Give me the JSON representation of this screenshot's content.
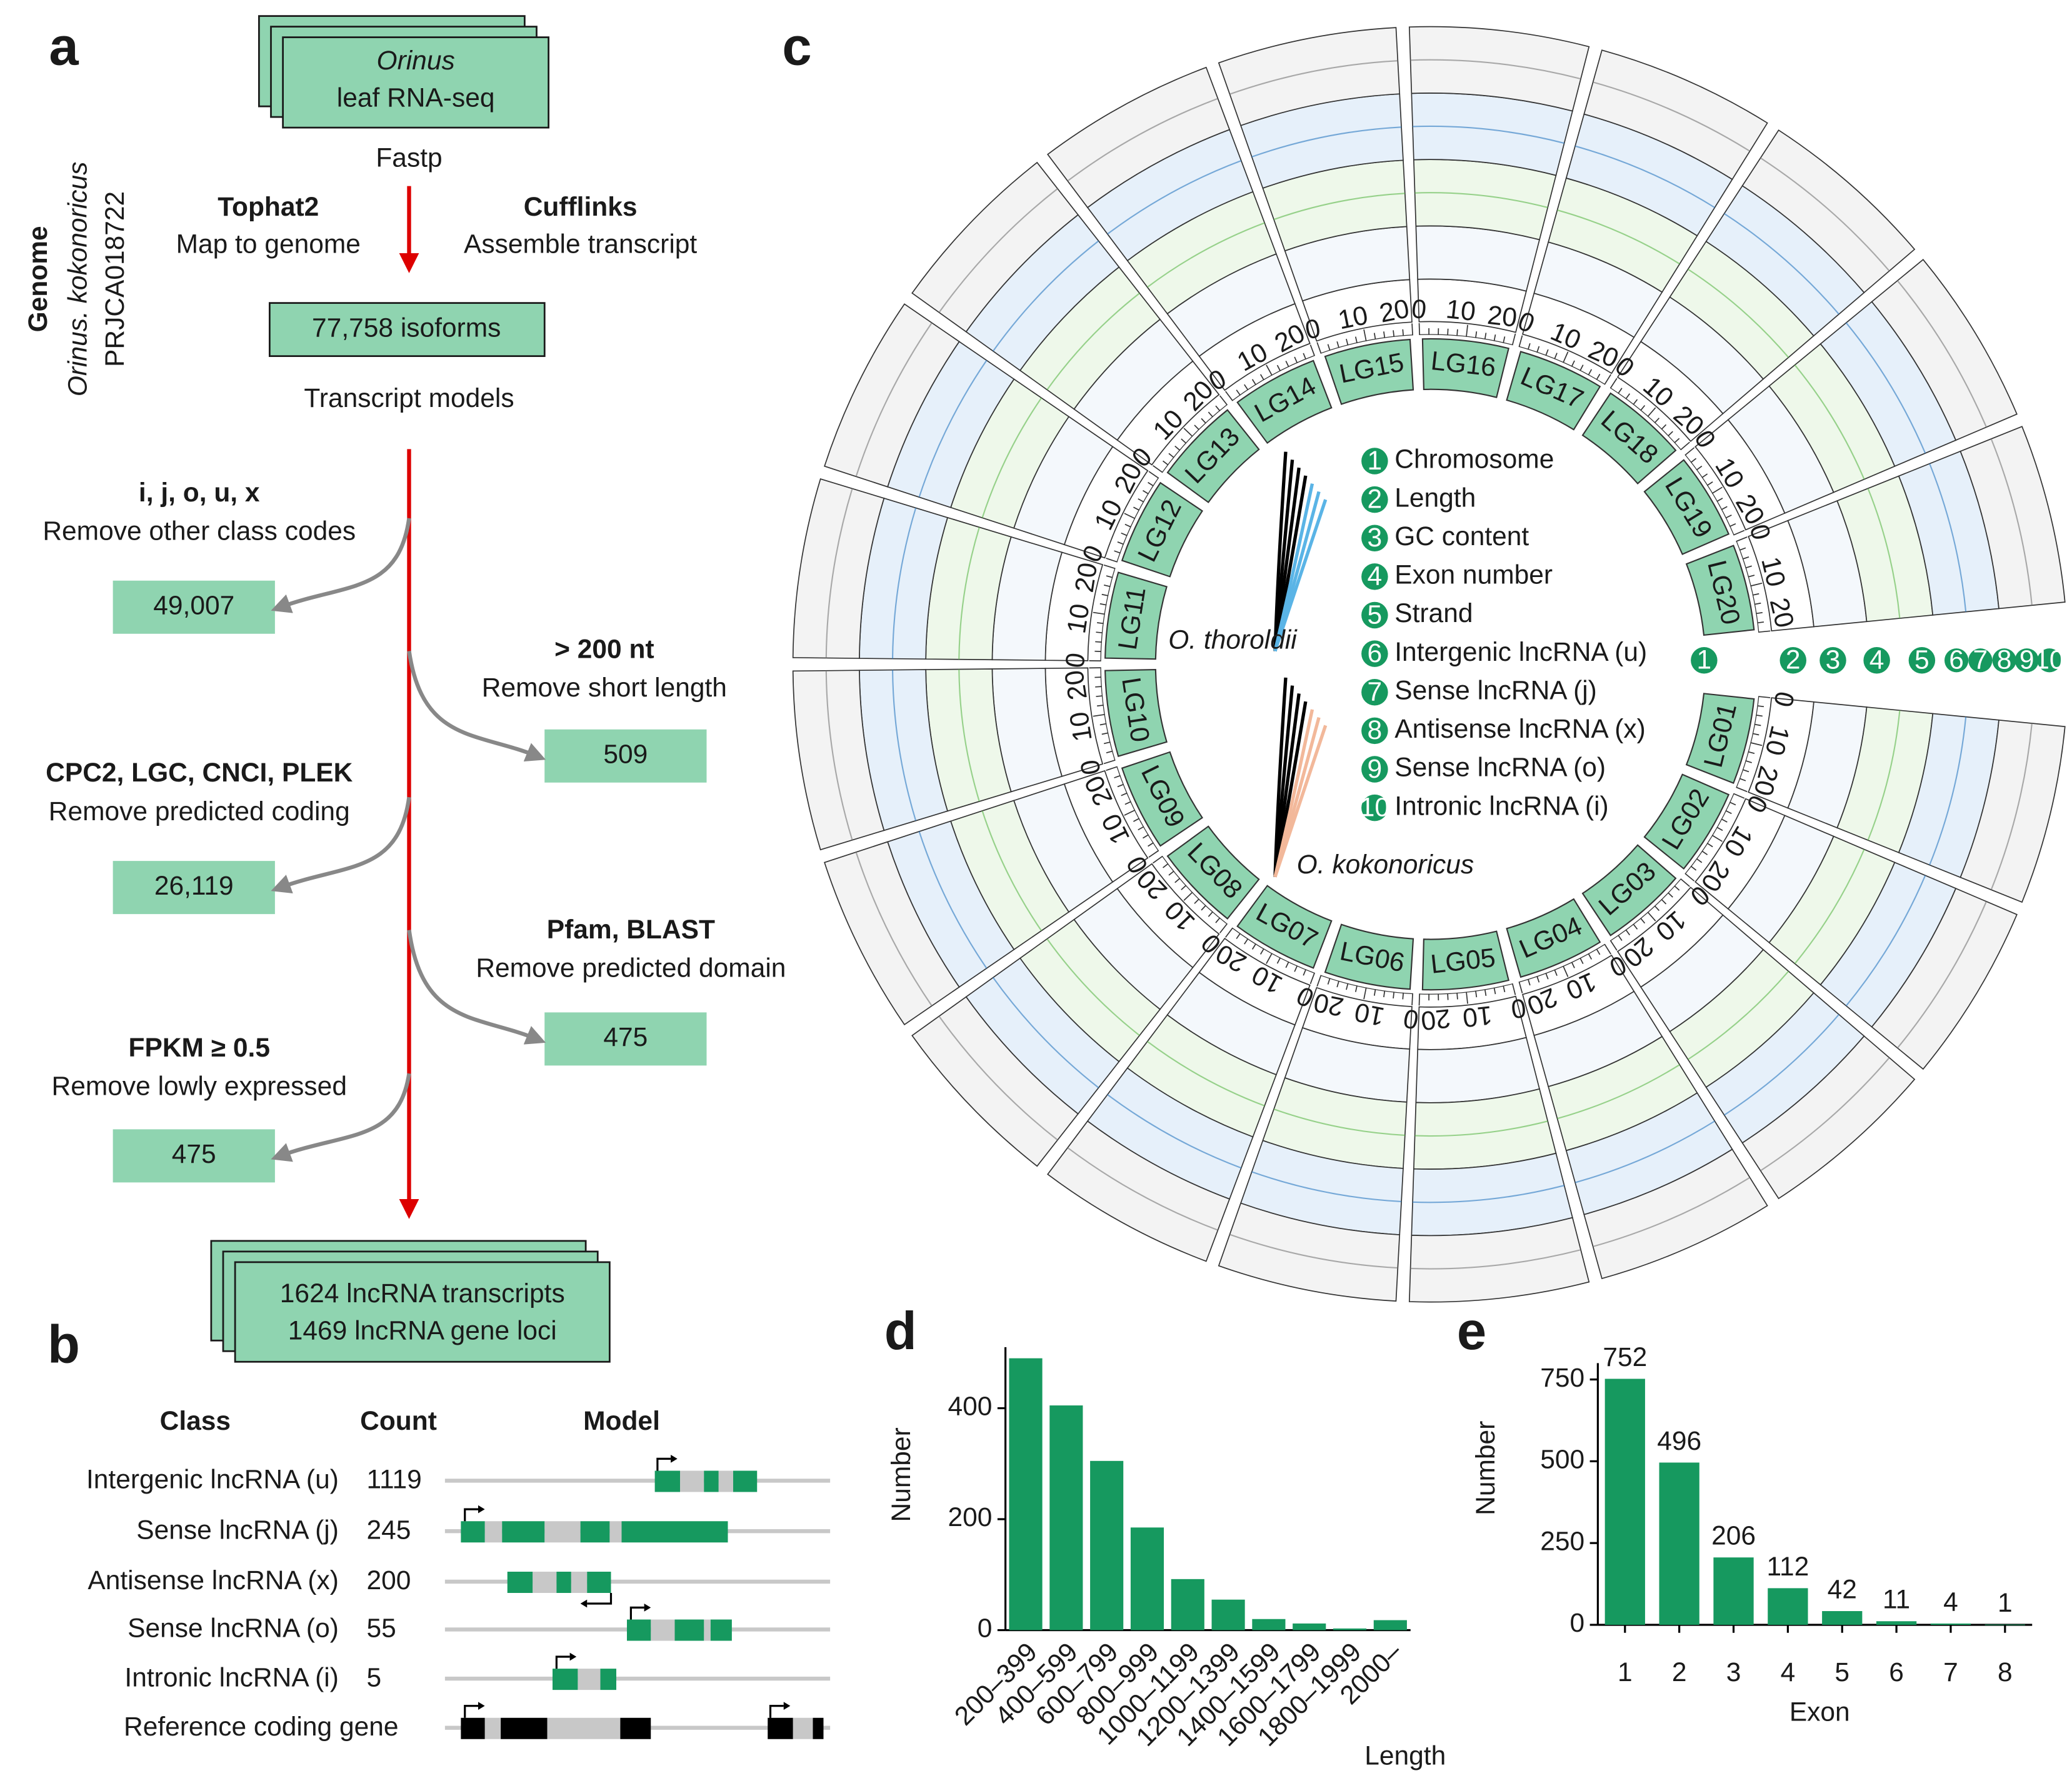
{
  "panel_labels": [
    "a",
    "b",
    "c",
    "d",
    "e"
  ],
  "workflow": {
    "genome": [
      "Genome",
      "Orinus. kokonoricus",
      "PRJCA018722"
    ],
    "input": [
      "Orinus",
      "leaf RNA-seq"
    ],
    "qc": "Fastp",
    "map": [
      "Tophat2",
      "Map to genome"
    ],
    "assemble": [
      "Cufflinks",
      "Assemble transcript"
    ],
    "isoforms": "77,758 isoforms",
    "models": "Transcript models",
    "filters": [
      [
        "i, j, o, u, x",
        "Remove other class codes",
        "49,007"
      ],
      [
        "> 200 nt",
        "Remove short length",
        "509"
      ],
      [
        "CPC2, LGC, CNCI, PLEK",
        "Remove predicted coding",
        "26,119"
      ],
      [
        "Pfam, BLAST",
        "Remove predicted domain",
        "475"
      ],
      [
        "FPKM ≥ 0.5",
        "Remove lowly expressed",
        "475"
      ]
    ],
    "output": [
      "1624 lncRNA transcripts",
      "1469 lncRNA gene loci"
    ]
  },
  "classes": {
    "headers": [
      "Class",
      "Count",
      "Model"
    ],
    "rows": [
      [
        "Intergenic lncRNA (u)",
        "1119"
      ],
      [
        "Sense lncRNA (j)",
        "245"
      ],
      [
        "Antisense lncRNA (x)",
        "200"
      ],
      [
        "Sense lncRNA (o)",
        "55"
      ],
      [
        "Intronic lncRNA (i)",
        "5"
      ]
    ],
    "reference": "Reference coding gene"
  },
  "circos": {
    "chromosomes": [
      "LG01",
      "LG02",
      "LG03",
      "LG04",
      "LG05",
      "LG06",
      "LG07",
      "LG08",
      "LG09",
      "LG10",
      "LG11",
      "LG12",
      "LG13",
      "LG14",
      "LG15",
      "LG16",
      "LG17",
      "LG18",
      "LG19",
      "LG20"
    ],
    "scale_ticks": [
      "0",
      "10",
      "20"
    ],
    "legend": [
      [
        "1",
        "Chromosome"
      ],
      [
        "2",
        "Length"
      ],
      [
        "3",
        "GC content"
      ],
      [
        "4",
        "Exon number"
      ],
      [
        "5",
        "Strand"
      ],
      [
        "6",
        "Intergenic lncRNA (u)"
      ],
      [
        "7",
        "Sense lncRNA (j)"
      ],
      [
        "8",
        "Antisense lncRNA (x)"
      ],
      [
        "9",
        "Sense lncRNA (o)"
      ],
      [
        "10",
        "Intronic lncRNA (i)"
      ]
    ],
    "species": [
      "O. thoroldii",
      "O. kokonoricus"
    ]
  },
  "chart_data": [
    {
      "type": "bar",
      "x_label": "Length",
      "y_label": "Number",
      "color": "#16995f",
      "categories": [
        "200–399",
        "400–599",
        "600–799",
        "800–999",
        "1000–1199",
        "1200–1399",
        "1400–1599",
        "1600–1799",
        "1800–1999",
        "2000–"
      ],
      "values": [
        490,
        405,
        305,
        185,
        92,
        55,
        20,
        12,
        3,
        18
      ],
      "ylim": [
        0,
        510
      ],
      "yticks": [
        0,
        200,
        400
      ]
    },
    {
      "type": "bar",
      "x_label": "Exon",
      "y_label": "Number",
      "color": "#16995f",
      "categories": [
        "1",
        "2",
        "3",
        "4",
        "5",
        "6",
        "7",
        "8"
      ],
      "values": [
        752,
        496,
        206,
        112,
        42,
        11,
        4,
        1
      ],
      "ylim": [
        0,
        800
      ],
      "yticks": [
        0,
        250,
        500,
        750
      ],
      "show_value_labels": true
    }
  ]
}
